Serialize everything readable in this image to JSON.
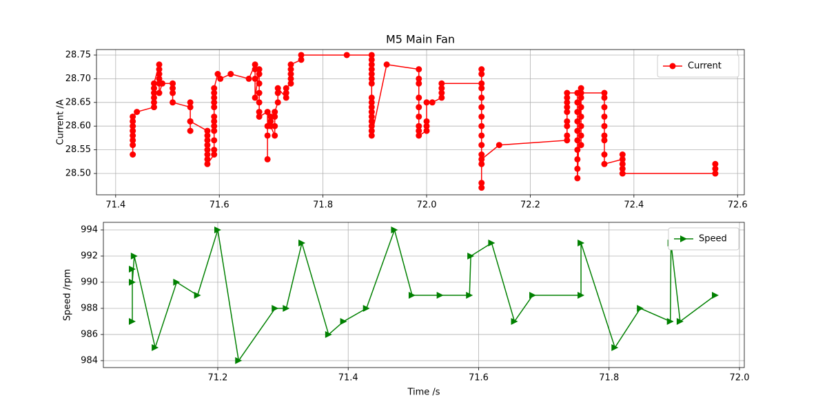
{
  "chart_data": [
    {
      "type": "line",
      "title": "M5 Main Fan",
      "ylabel": "Current /A",
      "x": [
        71.433,
        71.433,
        71.433,
        71.433,
        71.433,
        71.433,
        71.433,
        71.433,
        71.441,
        71.474,
        71.474,
        71.474,
        71.474,
        71.474,
        71.474,
        71.484,
        71.484,
        71.484,
        71.484,
        71.484,
        71.484,
        71.49,
        71.51,
        71.51,
        71.51,
        71.51,
        71.544,
        71.544,
        71.544,
        71.544,
        71.544,
        71.577,
        71.577,
        71.577,
        71.577,
        71.577,
        71.577,
        71.577,
        71.577,
        71.59,
        71.59,
        71.59,
        71.59,
        71.59,
        71.59,
        71.59,
        71.59,
        71.59,
        71.59,
        71.59,
        71.59,
        71.597,
        71.602,
        71.622,
        71.657,
        71.669,
        71.669,
        71.669,
        71.669,
        71.677,
        71.677,
        71.677,
        71.677,
        71.677,
        71.677,
        71.677,
        71.693,
        71.693,
        71.693,
        71.693,
        71.699,
        71.699,
        71.699,
        71.707,
        71.707,
        71.707,
        71.707,
        71.713,
        71.713,
        71.713,
        71.729,
        71.729,
        71.729,
        71.738,
        71.738,
        71.738,
        71.738,
        71.738,
        71.758,
        71.758,
        71.846,
        71.894,
        71.894,
        71.894,
        71.894,
        71.894,
        71.894,
        71.894,
        71.894,
        71.894,
        71.894,
        71.894,
        71.894,
        71.894,
        71.894,
        71.894,
        71.894,
        71.923,
        71.985,
        71.985,
        71.985,
        71.985,
        71.985,
        71.985,
        71.985,
        71.985,
        71.985,
        72.0,
        72.0,
        72.0,
        72.0,
        72.011,
        72.029,
        72.029,
        72.029,
        72.029,
        72.106,
        72.106,
        72.106,
        72.106,
        72.106,
        72.106,
        72.106,
        72.106,
        72.106,
        72.106,
        72.106,
        72.106,
        72.106,
        72.106,
        72.106,
        72.14,
        72.271,
        72.271,
        72.271,
        72.271,
        72.271,
        72.271,
        72.271,
        72.271,
        72.271,
        72.291,
        72.291,
        72.291,
        72.291,
        72.291,
        72.291,
        72.291,
        72.291,
        72.291,
        72.291,
        72.298,
        72.298,
        72.298,
        72.298,
        72.298,
        72.298,
        72.298,
        72.298,
        72.343,
        72.343,
        72.343,
        72.343,
        72.343,
        72.343,
        72.343,
        72.343,
        72.343,
        72.378,
        72.378,
        72.378,
        72.378,
        72.378,
        72.557,
        72.557,
        72.557
      ],
      "series": [
        {
          "name": "Current",
          "color": "#ff0000",
          "marker": "o",
          "values": [
            28.54,
            28.56,
            28.57,
            28.58,
            28.59,
            28.6,
            28.61,
            28.62,
            28.63,
            28.64,
            28.65,
            28.66,
            28.67,
            28.68,
            28.69,
            28.73,
            28.72,
            28.71,
            28.7,
            28.69,
            28.67,
            28.69,
            28.69,
            28.68,
            28.67,
            28.65,
            28.64,
            28.65,
            28.61,
            28.59,
            28.61,
            28.59,
            28.58,
            28.57,
            28.56,
            28.55,
            28.54,
            28.53,
            28.52,
            28.54,
            28.55,
            28.57,
            28.59,
            28.6,
            28.61,
            28.62,
            28.64,
            28.65,
            28.66,
            28.67,
            28.68,
            28.71,
            28.7,
            28.71,
            28.7,
            28.73,
            28.72,
            28.7,
            28.66,
            28.72,
            28.71,
            28.69,
            28.67,
            28.65,
            28.63,
            28.62,
            28.63,
            28.53,
            28.58,
            28.6,
            28.61,
            28.62,
            28.6,
            28.58,
            28.6,
            28.62,
            28.63,
            28.65,
            28.67,
            28.68,
            28.66,
            28.67,
            28.68,
            28.69,
            28.7,
            28.71,
            28.72,
            28.73,
            28.74,
            28.75,
            28.75,
            28.75,
            28.74,
            28.73,
            28.72,
            28.71,
            28.7,
            28.69,
            28.66,
            28.65,
            28.64,
            28.63,
            28.62,
            28.61,
            28.6,
            28.59,
            28.58,
            28.73,
            28.72,
            28.7,
            28.69,
            28.66,
            28.64,
            28.62,
            28.6,
            28.59,
            28.58,
            28.59,
            28.6,
            28.61,
            28.65,
            28.65,
            28.66,
            28.67,
            28.68,
            28.69,
            28.69,
            28.72,
            28.71,
            28.68,
            28.66,
            28.64,
            28.62,
            28.6,
            28.58,
            28.56,
            28.54,
            28.52,
            28.48,
            28.47,
            28.53,
            28.56,
            28.57,
            28.58,
            28.6,
            28.61,
            28.63,
            28.64,
            28.65,
            28.66,
            28.67,
            28.67,
            28.65,
            28.63,
            28.61,
            28.59,
            28.57,
            28.55,
            28.53,
            28.51,
            28.49,
            28.68,
            28.66,
            28.64,
            28.62,
            28.6,
            28.58,
            28.56,
            28.67,
            28.67,
            28.66,
            28.64,
            28.62,
            28.6,
            28.58,
            28.57,
            28.54,
            28.52,
            28.53,
            28.54,
            28.52,
            28.51,
            28.5,
            28.5,
            28.51,
            28.52
          ]
        }
      ],
      "xlim": [
        71.363,
        72.613
      ],
      "ylim": [
        28.455,
        28.7616
      ],
      "xticks": [
        71.4,
        71.6,
        71.8,
        {
          "value": 72.0,
          "label": "72.0"
        },
        72.2,
        72.4,
        72.6
      ],
      "yticks": [
        {
          "value": 28.5,
          "label": "28.50"
        },
        28.55,
        {
          "value": 28.6,
          "label": "28.60"
        },
        28.65,
        {
          "value": 28.7,
          "label": "28.70"
        },
        28.75
      ],
      "grid": true,
      "legend": "upper right"
    },
    {
      "type": "line",
      "xlabel": "Time /s",
      "ylabel": "Speed /rpm",
      "x": [
        71.069,
        71.069,
        71.069,
        71.072,
        71.104,
        71.137,
        71.169,
        71.2,
        71.232,
        71.288,
        71.305,
        71.329,
        71.37,
        71.393,
        71.428,
        71.471,
        71.498,
        71.541,
        71.586,
        71.588,
        71.62,
        71.655,
        71.683,
        71.757,
        71.757,
        71.809,
        71.848,
        71.894,
        71.895,
        71.909,
        71.963
      ],
      "series": [
        {
          "name": "Speed",
          "color": "#008000",
          "marker": ">",
          "values": [
            987,
            991,
            990,
            992,
            985,
            990,
            989,
            994,
            984,
            988,
            988,
            993,
            986,
            987,
            988,
            994,
            989,
            989,
            989,
            992,
            993,
            987,
            989,
            989,
            993,
            985,
            988,
            987,
            993,
            987,
            989
          ]
        }
      ],
      "xlim": [
        71.0246,
        72.0074
      ],
      "ylim": [
        983.47,
        994.58
      ],
      "xticks": [
        71.2,
        71.4,
        71.6,
        71.8,
        {
          "value": 72.0,
          "label": "72.0"
        }
      ],
      "yticks": [
        984,
        986,
        988,
        990,
        992,
        994
      ],
      "grid": true,
      "legend": "upper right"
    }
  ]
}
